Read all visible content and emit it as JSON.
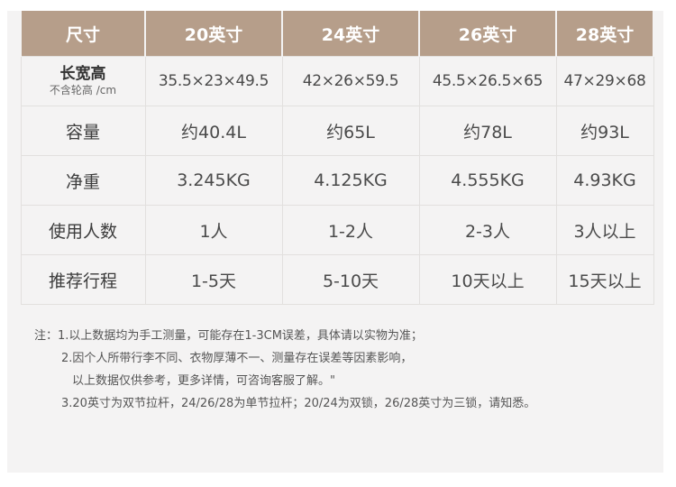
{
  "table": {
    "headers": [
      "尺寸",
      "20英寸",
      "24英寸",
      "26英寸",
      "28英寸"
    ],
    "dimensions": {
      "label": "长宽高",
      "sublabel": "不含轮高 /cm",
      "values": [
        "35.5×23×49.5",
        "42×26×59.5",
        "45.5×26.5×65",
        "47×29×68"
      ]
    },
    "rows": [
      {
        "label": "容量",
        "values": [
          "约40.4L",
          "约65L",
          "约78L",
          "约93L"
        ]
      },
      {
        "label": "净重",
        "values": [
          "3.245KG",
          "4.125KG",
          "4.555KG",
          "4.93KG"
        ]
      },
      {
        "label": "使用人数",
        "values": [
          "1人",
          "1-2人",
          "2-3人",
          "3人以上"
        ]
      },
      {
        "label": "推荐行程",
        "values": [
          "1-5天",
          "5-10天",
          "10天以上",
          "15天以上"
        ]
      }
    ]
  },
  "notes": [
    "注：1.以上数据均为手工测量，可能存在1-3CM误差，具体请以实物为准；",
    "2.因个人所带行李不同、衣物厚薄不一、测量存在误差等因素影响，",
    "以上数据仅供参考，更多详情，可咨询客服了解。\"",
    "3.20英寸为双节拉杆，24/26/28为单节拉杆；20/24为双锁，26/28英寸为三锁，请知悉。"
  ]
}
